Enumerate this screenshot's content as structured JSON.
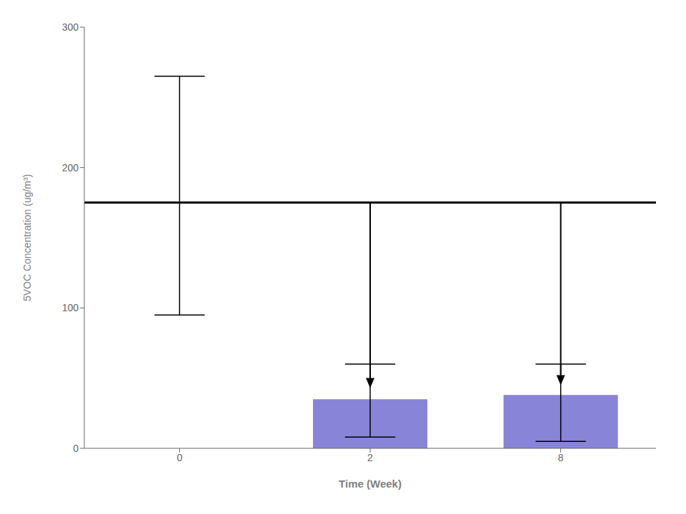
{
  "chart_data": {
    "type": "bar",
    "categories": [
      "0",
      "2",
      "8"
    ],
    "values": [
      null,
      35,
      38
    ],
    "error_lower": [
      95,
      8,
      5
    ],
    "error_upper": [
      265,
      60,
      60
    ],
    "hline": 175,
    "arrows": [
      {
        "category": "2",
        "from": 175,
        "to": 43
      },
      {
        "category": "8",
        "from": 175,
        "to": 45
      }
    ],
    "xlabel": "Time (Week)",
    "ylabel": "5VOC Concentration (ug/m³)",
    "ylim": [
      0,
      300
    ],
    "yticks": [
      0,
      100,
      200,
      300
    ],
    "grid": false,
    "color": "#8884d8"
  }
}
